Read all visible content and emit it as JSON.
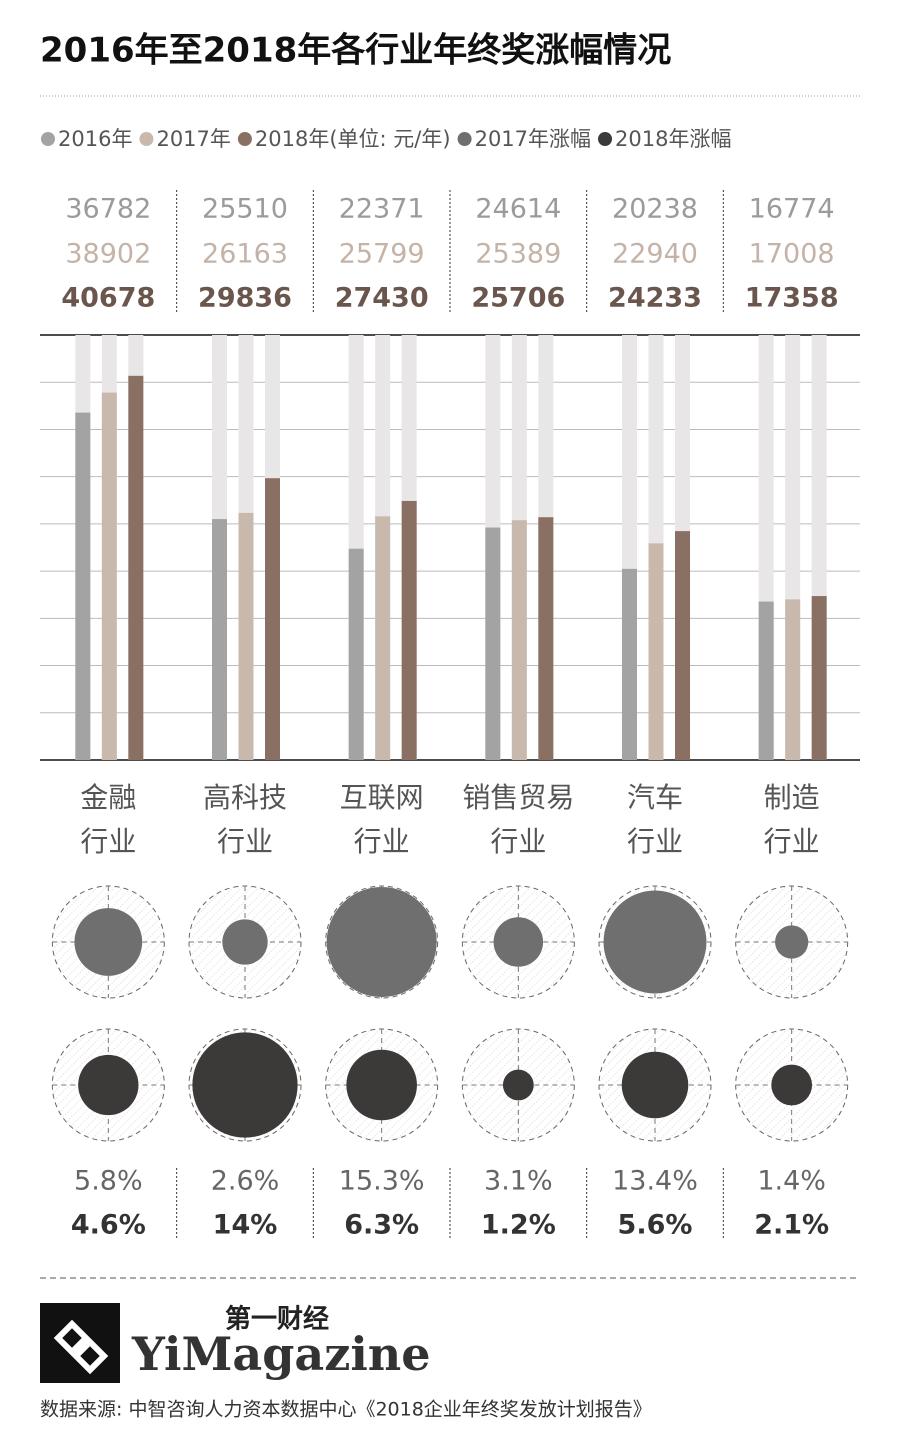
{
  "chart_data": {
    "type": "bar",
    "title": "2016年至2018年各行业年终奖涨幅情况",
    "unit_label": "(单位: 元/年)",
    "categories": [
      "金融\n行业",
      "高科技\n行业",
      "互联网\n行业",
      "销售贸易\n行业",
      "汽车\n行业",
      "制造\n行业"
    ],
    "series": [
      {
        "name": "2016年",
        "color": "#a3a3a3",
        "values": [
          36782,
          25510,
          22371,
          24614,
          20238,
          16774
        ]
      },
      {
        "name": "2017年",
        "color": "#c9b9ac",
        "values": [
          38902,
          26163,
          25799,
          25389,
          22940,
          17008
        ]
      },
      {
        "name": "2018年",
        "color": "#8a6f63",
        "values": [
          40678,
          29836,
          27430,
          25706,
          24233,
          17358
        ]
      }
    ],
    "ylim": [
      0,
      45000
    ],
    "yticks": [
      0,
      5000,
      10000,
      15000,
      20000,
      25000,
      30000,
      35000,
      40000,
      45000
    ],
    "grid": true,
    "bubbles": [
      {
        "name": "2017年涨幅",
        "color": "#6f6f6f",
        "values": [
          5.8,
          2.6,
          15.3,
          3.1,
          13.4,
          1.4
        ],
        "value_labels": [
          "5.8%",
          "2.6%",
          "15.3%",
          "3.1%",
          "13.4%",
          "1.4%"
        ]
      },
      {
        "name": "2018年涨幅",
        "color": "#3c3939",
        "values": [
          4.6,
          14,
          6.3,
          1.2,
          5.6,
          2.1
        ],
        "value_labels": [
          "4.6%",
          "14%",
          "6.3%",
          "1.2%",
          "5.6%",
          "2.1%"
        ]
      }
    ]
  },
  "footer": {
    "brand_cn": "第一财经",
    "brand_en": "YiMagazine",
    "source": "数据来源: 中智咨询人力资本数据中心《2018企业年终奖发放计划报告》"
  }
}
